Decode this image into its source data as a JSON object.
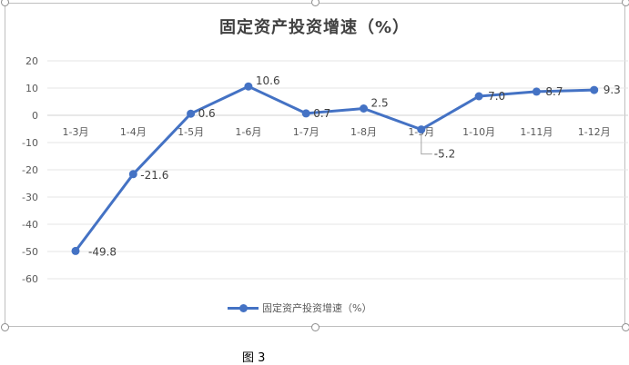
{
  "chart_data": {
    "type": "line",
    "title": "固定资产投资增速（%）",
    "categories": [
      "1-3月",
      "1-4月",
      "1-5月",
      "1-6月",
      "1-7月",
      "1-8月",
      "1-9月",
      "1-10月",
      "1-11月",
      "1-12月"
    ],
    "series": [
      {
        "name": "固定资产投资增速（%）",
        "values": [
          -49.8,
          -21.6,
          0.6,
          10.6,
          0.7,
          2.5,
          -5.2,
          7.0,
          8.7,
          9.3
        ]
      }
    ],
    "data_labels": [
      "-49.8",
      "-21.6",
      "0.6",
      "10.6",
      "0.7",
      "2.5",
      "-5.2",
      "7.0",
      "8.7",
      "9.3"
    ],
    "y_ticks": [
      "20",
      "10",
      "0",
      "-10",
      "-20",
      "-30",
      "-40",
      "-50",
      "-60"
    ],
    "ylim": [
      -60,
      20
    ],
    "xlabel": "",
    "ylabel": "",
    "grid": true,
    "legend_position": "bottom",
    "color": "#4472c4"
  },
  "caption": "图 3"
}
